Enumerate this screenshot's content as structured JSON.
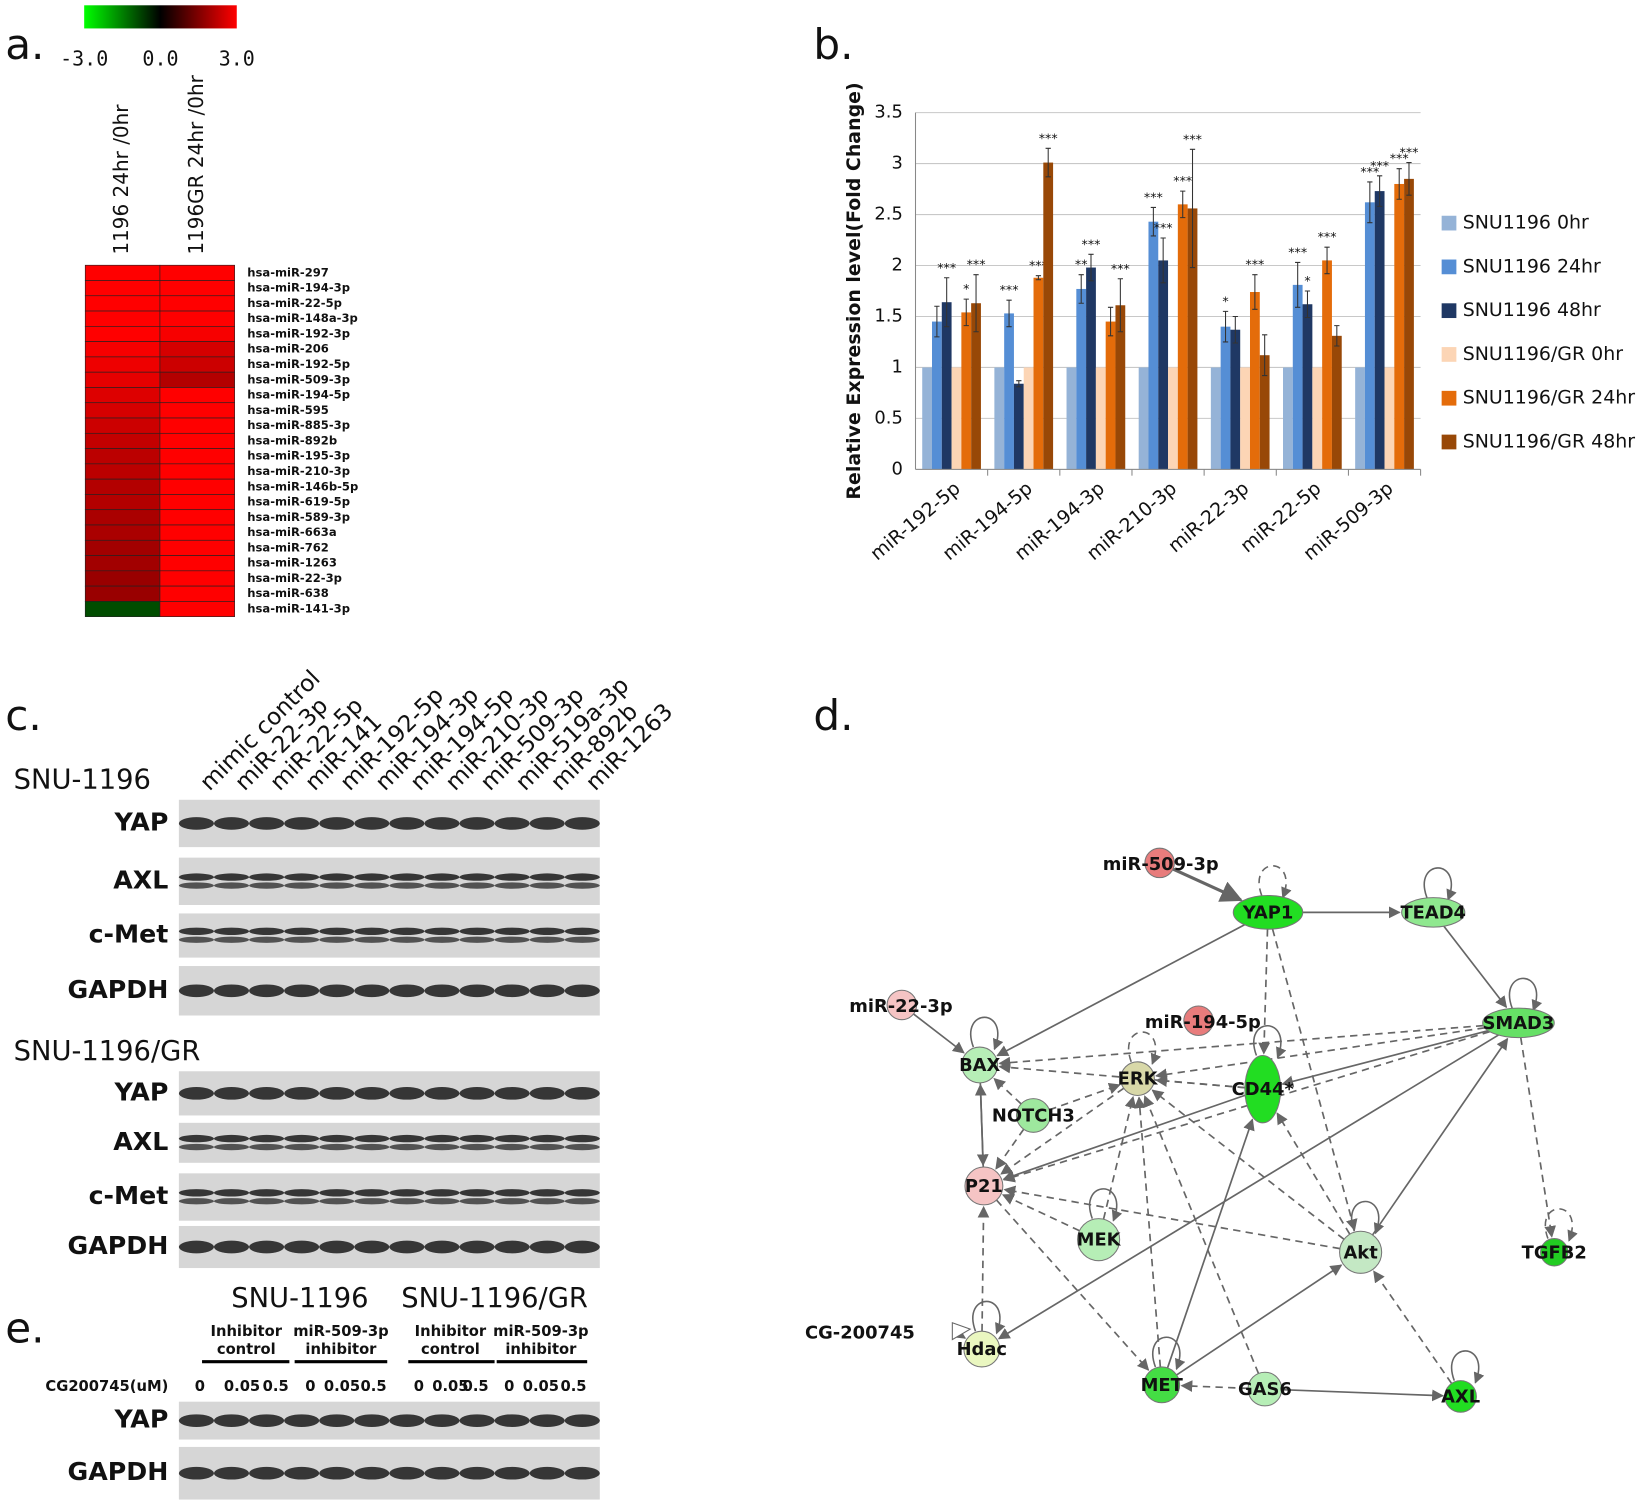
{
  "panel_labels": [
    "a.",
    "b.",
    "c.",
    "d.",
    "e."
  ],
  "heatmap": {
    "color_ticks": [
      {
        "value": -3,
        "label": "-3.0"
      },
      {
        "value": 0,
        "label": "0.0"
      },
      {
        "value": 3,
        "label": "3.0"
      }
    ],
    "columns": [
      "1196 24hr /0hr",
      "1196GR 24hr /0hr"
    ],
    "rows": [
      {
        "label": "hsa-miR-297",
        "values": [
          3,
          3
        ]
      },
      {
        "label": "hsa-miR-194-3p",
        "values": [
          3,
          3
        ]
      },
      {
        "label": "hsa-miR-22-5p",
        "values": [
          3,
          3
        ]
      },
      {
        "label": "hsa-miR-148a-3p",
        "values": [
          3,
          3
        ]
      },
      {
        "label": "hsa-miR-192-3p",
        "values": [
          3,
          2.9
        ]
      },
      {
        "label": "hsa-miR-206",
        "values": [
          2.9,
          2.5
        ]
      },
      {
        "label": "hsa-miR-192-5p",
        "values": [
          2.8,
          2.4
        ]
      },
      {
        "label": "hsa-miR-509-3p",
        "values": [
          2.7,
          2.1
        ]
      },
      {
        "label": "hsa-miR-194-5p",
        "values": [
          2.6,
          3
        ]
      },
      {
        "label": "hsa-miR-595",
        "values": [
          2.5,
          3
        ]
      },
      {
        "label": "hsa-miR-885-3p",
        "values": [
          2.4,
          3
        ]
      },
      {
        "label": "hsa-miR-892b",
        "values": [
          2.3,
          3
        ]
      },
      {
        "label": "hsa-miR-195-3p",
        "values": [
          2.2,
          3
        ]
      },
      {
        "label": "hsa-miR-210-3p",
        "values": [
          2.2,
          3
        ]
      },
      {
        "label": "hsa-miR-146b-5p",
        "values": [
          2.1,
          3
        ]
      },
      {
        "label": "hsa-miR-619-5p",
        "values": [
          2.1,
          3
        ]
      },
      {
        "label": "hsa-miR-589-3p",
        "values": [
          2.0,
          3
        ]
      },
      {
        "label": "hsa-miR-663a",
        "values": [
          2.0,
          3
        ]
      },
      {
        "label": "hsa-miR-762",
        "values": [
          1.9,
          3
        ]
      },
      {
        "label": "hsa-miR-1263",
        "values": [
          1.9,
          3
        ]
      },
      {
        "label": "hsa-miR-22-3p",
        "values": [
          1.8,
          3
        ]
      },
      {
        "label": "hsa-miR-638",
        "values": [
          1.8,
          3
        ]
      },
      {
        "label": "hsa-miR-141-3p",
        "values": [
          -1.5,
          3
        ]
      }
    ]
  },
  "chart_data": {
    "type": "bar",
    "y_label": "Relative Expression level(Fold Change)",
    "categories": [
      "miR-192-5p",
      "miR-194-5p",
      "miR-194-3p",
      "miR-210-3p",
      "miR-22-3p",
      "miR-22-5p",
      "miR-509-3p"
    ],
    "series": [
      {
        "name": "SNU1196 0hr",
        "color": "#95b3d7",
        "values": [
          1,
          1,
          1,
          1,
          1,
          1,
          1
        ]
      },
      {
        "name": "SNU1196 24hr",
        "color": "#558ed5",
        "values": [
          1.45,
          1.53,
          1.77,
          2.43,
          1.4,
          1.81,
          2.62
        ],
        "errors": [
          0.15,
          0.13,
          0.14,
          0.14,
          0.15,
          0.22,
          0.2
        ],
        "stars": [
          null,
          "***",
          "**",
          "***",
          "*",
          "***",
          "***"
        ]
      },
      {
        "name": "SNU1196 48hr",
        "color": "#1f3864",
        "values": [
          1.64,
          0.84,
          1.98,
          2.05,
          1.37,
          1.62,
          2.73
        ],
        "errors": [
          0.24,
          0.03,
          0.13,
          0.22,
          0.13,
          0.13,
          0.15
        ],
        "stars": [
          "***",
          null,
          "***",
          "***",
          null,
          "*",
          "***"
        ]
      },
      {
        "name": "SNU1196/GR 0hr",
        "color": "#fcd5b5",
        "values": [
          1,
          1,
          1,
          1,
          1,
          1,
          1
        ]
      },
      {
        "name": "SNU1196/GR 24hr",
        "color": "#e46c0a",
        "values": [
          1.54,
          1.88,
          1.45,
          2.6,
          1.74,
          2.05,
          2.8
        ],
        "errors": [
          0.13,
          0.02,
          0.14,
          0.13,
          0.17,
          0.13,
          0.15
        ],
        "stars": [
          "*",
          "***",
          null,
          "***",
          "***",
          "***",
          "***"
        ]
      },
      {
        "name": "SNU1196/GR 48hr",
        "color": "#984807",
        "values": [
          1.63,
          3.01,
          1.61,
          2.56,
          1.12,
          1.31,
          2.85
        ],
        "errors": [
          0.28,
          0.14,
          0.26,
          0.58,
          0.2,
          0.1,
          0.16
        ],
        "stars": [
          "***",
          "***",
          "***",
          "***",
          null,
          null,
          "***"
        ]
      }
    ],
    "ylim": [
      0,
      3.5
    ],
    "yticks": [
      0,
      0.5,
      1,
      1.5,
      2,
      2.5,
      3,
      3.5
    ],
    "grid": true,
    "legend": "right"
  },
  "blot_c": {
    "lanes": [
      "mimic control",
      "miR-22-3p",
      "miR-22-5p",
      "miR-141",
      "miR-192-5p",
      "miR-194-3p",
      "miR-194-5p",
      "miR-210-3p",
      "miR-509-3p",
      "miR-519a-3p",
      "miR-892b",
      "miR-1263"
    ],
    "groups": [
      {
        "name": "SNU-1196",
        "blots": [
          "YAP",
          "AXL",
          "c-Met",
          "GAPDH"
        ]
      },
      {
        "name": "SNU-1196/GR",
        "blots": [
          "YAP",
          "AXL",
          "c-Met",
          "GAPDH"
        ]
      }
    ]
  },
  "network": {
    "nodes": [
      {
        "label": "miR-509-3p",
        "color": "#e87c7c"
      },
      {
        "label": "YAP1",
        "color": "#22dd22"
      },
      {
        "label": "TEAD4",
        "color": "#8fe88f"
      },
      {
        "label": "miR-22-3p",
        "color": "#f5c4c4"
      },
      {
        "label": "miR-194-5p",
        "color": "#e87c7c"
      },
      {
        "label": "SMAD3",
        "color": "#66e066"
      },
      {
        "label": "BAX",
        "color": "#b6eeb6"
      },
      {
        "label": "ERK",
        "color": "#d8d8a8"
      },
      {
        "label": "CD44*",
        "color": "#22dd22"
      },
      {
        "label": "NOTCH3",
        "color": "#9ee89e"
      },
      {
        "label": "P21",
        "color": "#f5c4c4"
      },
      {
        "label": "MEK",
        "color": "#b6eeb6"
      },
      {
        "label": "Akt",
        "color": "#c4e8c4"
      },
      {
        "label": "TGFB2",
        "color": "#22cc22"
      },
      {
        "label": "CG-200745",
        "color": "#ffffff"
      },
      {
        "label": "Hdac",
        "color": "#eaf7c0"
      },
      {
        "label": "MET",
        "color": "#44dd44"
      },
      {
        "label": "GAS6",
        "color": "#b6eeb6"
      },
      {
        "label": "AXL",
        "color": "#22dd22"
      }
    ]
  },
  "blot_e": {
    "cell_lines": [
      "SNU-1196",
      "SNU-1196/GR"
    ],
    "treatments": [
      {
        "lines": [
          "Inhibitor",
          "control"
        ]
      },
      {
        "lines": [
          "miR-509-3p",
          "inhibitor"
        ]
      },
      {
        "lines": [
          "Inhibitor",
          "control"
        ]
      },
      {
        "lines": [
          "miR-509-3p",
          "inhibitor"
        ]
      }
    ],
    "dose_label": "CG200745(uM)",
    "doses": [
      "0",
      "0.05",
      "0.5",
      "0",
      "0.05",
      "0.5",
      "0",
      "0.05",
      "0.5",
      "0",
      "0.05",
      "0.5"
    ],
    "blots": [
      "YAP",
      "GAPDH"
    ]
  }
}
